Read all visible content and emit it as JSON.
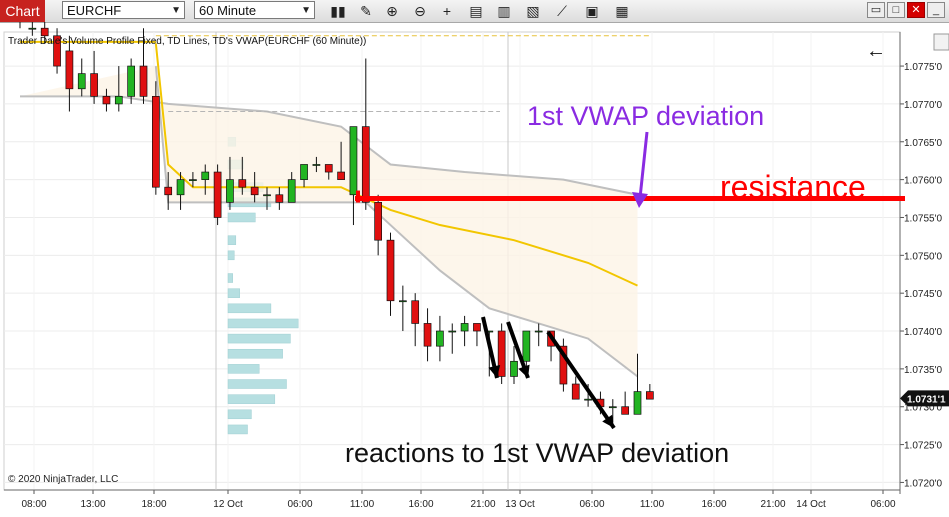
{
  "toolbar": {
    "chart_tab": "Chart",
    "instrument": "EURCHF",
    "timeframe": "60 Minute",
    "icons": [
      "bar-type-icon",
      "draw-pencil-icon",
      "zoom-in-icon",
      "zoom-out-icon",
      "crosshair-icon",
      "data-box-icon",
      "instrument-properties-icon",
      "strategies-icon",
      "indicators-icon",
      "templates-icon",
      "properties-icon"
    ],
    "window_buttons": [
      "restore",
      "maximize",
      "close"
    ]
  },
  "chart": {
    "indicator_label": "Trader Dale's Volume Profile Fixed, TD Lines, TD's VWAP(EURCHF (60 Minute))",
    "copyright": "© 2020 NinjaTrader, LLC",
    "current_price": "1.0731'1",
    "annotations": {
      "vwap_deviation": "1st VWAP deviation",
      "resistance": "resistance",
      "reactions": "reactions to 1st VWAP deviation"
    },
    "colors": {
      "up": "#22b422",
      "down": "#e01010",
      "vwap": "#f2c600",
      "band": "#bfbfbf",
      "profile": "#b6dfe1",
      "resistance": "#ff0000",
      "annotation_purple": "#8a2be2"
    }
  },
  "chart_data": {
    "type": "candlestick",
    "y_ticks": [
      "1.0775'0",
      "1.0770'0",
      "1.0765'0",
      "1.0760'0",
      "1.0755'0",
      "1.0750'0",
      "1.0745'0",
      "1.0740'0",
      "1.0735'0",
      "1.0730'0",
      "1.0725'0",
      "1.0720'0"
    ],
    "y_values": [
      1.0775,
      1.077,
      1.0765,
      1.076,
      1.0755,
      1.075,
      1.0745,
      1.074,
      1.0735,
      1.073,
      1.0725,
      1.072
    ],
    "x_ticks": [
      "08:00",
      "13:00",
      "18:00",
      "12 Oct",
      "06:00",
      "11:00",
      "16:00",
      "21:00",
      "13 Oct",
      "06:00",
      "11:00",
      "16:00",
      "21:00",
      "14 Oct",
      "06:00"
    ],
    "candles": [
      [
        1.0781,
        1.0782,
        1.078,
        1.0781
      ],
      [
        1.078,
        1.0781,
        1.0779,
        1.078
      ],
      [
        1.078,
        1.0781,
        1.0778,
        1.0779
      ],
      [
        1.0779,
        1.078,
        1.0774,
        1.0775
      ],
      [
        1.0777,
        1.0779,
        1.0769,
        1.0772
      ],
      [
        1.0772,
        1.0776,
        1.0771,
        1.0774
      ],
      [
        1.0774,
        1.0777,
        1.077,
        1.0771
      ],
      [
        1.0771,
        1.0772,
        1.0769,
        1.077
      ],
      [
        1.077,
        1.0775,
        1.0769,
        1.0771
      ],
      [
        1.0771,
        1.0776,
        1.077,
        1.0775
      ],
      [
        1.0775,
        1.078,
        1.077,
        1.0771
      ],
      [
        1.0771,
        1.0773,
        1.0758,
        1.0759
      ],
      [
        1.0759,
        1.0761,
        1.0756,
        1.0758
      ],
      [
        1.0758,
        1.0761,
        1.0756,
        1.076
      ],
      [
        1.076,
        1.0761,
        1.0759,
        1.076
      ],
      [
        1.076,
        1.0762,
        1.0758,
        1.0761
      ],
      [
        1.0761,
        1.0762,
        1.0754,
        1.0755
      ],
      [
        1.0757,
        1.0763,
        1.0756,
        1.076
      ],
      [
        1.076,
        1.0763,
        1.0758,
        1.0759
      ],
      [
        1.0759,
        1.0761,
        1.0757,
        1.0758
      ],
      [
        1.0758,
        1.0759,
        1.0756,
        1.0758
      ],
      [
        1.0758,
        1.0759,
        1.0756,
        1.0757
      ],
      [
        1.0757,
        1.0761,
        1.0757,
        1.076
      ],
      [
        1.076,
        1.0762,
        1.0759,
        1.0762
      ],
      [
        1.0762,
        1.0763,
        1.0761,
        1.0762
      ],
      [
        1.0762,
        1.0762,
        1.076,
        1.0761
      ],
      [
        1.0761,
        1.0765,
        1.076,
        1.076
      ],
      [
        1.0758,
        1.0767,
        1.0754,
        1.0767
      ],
      [
        1.0767,
        1.0776,
        1.0756,
        1.0757
      ],
      [
        1.0757,
        1.0758,
        1.075,
        1.0752
      ],
      [
        1.0752,
        1.0753,
        1.0742,
        1.0744
      ],
      [
        1.0744,
        1.0746,
        1.074,
        1.0744
      ],
      [
        1.0744,
        1.0745,
        1.0738,
        1.0741
      ],
      [
        1.0741,
        1.0743,
        1.0736,
        1.0738
      ],
      [
        1.0738,
        1.0742,
        1.0736,
        1.074
      ],
      [
        1.074,
        1.0741,
        1.0737,
        1.074
      ],
      [
        1.074,
        1.0742,
        1.0738,
        1.0741
      ],
      [
        1.0741,
        1.0741,
        1.0738,
        1.074
      ],
      [
        1.074,
        1.074,
        1.0734,
        1.074
      ],
      [
        1.074,
        1.0741,
        1.0733,
        1.0734
      ],
      [
        1.0734,
        1.0738,
        1.0733,
        1.0736
      ],
      [
        1.0736,
        1.074,
        1.0734,
        1.074
      ],
      [
        1.074,
        1.0741,
        1.0738,
        1.074
      ],
      [
        1.074,
        1.074,
        1.0736,
        1.0738
      ],
      [
        1.0738,
        1.0739,
        1.0732,
        1.0733
      ],
      [
        1.0733,
        1.0734,
        1.0731,
        1.0731
      ],
      [
        1.0731,
        1.0733,
        1.073,
        1.0731
      ],
      [
        1.0731,
        1.0732,
        1.0729,
        1.073
      ],
      [
        1.073,
        1.0731,
        1.0728,
        1.073
      ],
      [
        1.073,
        1.0732,
        1.0729,
        1.0729
      ],
      [
        1.0729,
        1.0737,
        1.0729,
        1.0732
      ],
      [
        1.0732,
        1.0733,
        1.0731,
        1.0731
      ]
    ],
    "vwap": [
      [
        11,
        1.0778
      ],
      [
        12,
        1.0762
      ],
      [
        14,
        1.0759
      ],
      [
        20,
        1.0759
      ],
      [
        26,
        1.0759
      ],
      [
        30,
        1.0756
      ],
      [
        34,
        1.0754
      ],
      [
        40,
        1.0752
      ],
      [
        46,
        1.0749
      ],
      [
        50,
        1.0746
      ]
    ],
    "upper_band": [
      [
        0,
        1.0771
      ],
      [
        8,
        1.0771
      ],
      [
        12,
        1.077
      ],
      [
        20,
        1.0769
      ],
      [
        26,
        1.0767
      ],
      [
        30,
        1.0762
      ],
      [
        36,
        1.0761
      ],
      [
        44,
        1.076
      ],
      [
        50,
        1.0758
      ]
    ],
    "lower_band": [
      [
        11,
        1.0775
      ],
      [
        12,
        1.0757
      ],
      [
        20,
        1.0757
      ],
      [
        28,
        1.0757
      ],
      [
        34,
        1.0748
      ],
      [
        38,
        1.0743
      ],
      [
        42,
        1.0741
      ],
      [
        46,
        1.0739
      ],
      [
        50,
        1.0734
      ]
    ],
    "profile_levels": [
      [
        1.0765,
        0.1
      ],
      [
        1.0762,
        0.2
      ],
      [
        1.0759,
        0.45
      ],
      [
        1.0757,
        0.55
      ],
      [
        1.0755,
        0.35
      ],
      [
        1.0752,
        0.1
      ],
      [
        1.075,
        0.08
      ],
      [
        1.0747,
        0.06
      ],
      [
        1.0745,
        0.15
      ],
      [
        1.0743,
        0.55
      ],
      [
        1.0741,
        0.9
      ],
      [
        1.0739,
        0.8
      ],
      [
        1.0737,
        0.7
      ],
      [
        1.0735,
        0.4
      ],
      [
        1.0733,
        0.75
      ],
      [
        1.0731,
        0.6
      ],
      [
        1.0729,
        0.3
      ],
      [
        1.0727,
        0.25
      ]
    ],
    "resistance_level": 1.07575,
    "vwap_dev_level": 1.0769
  }
}
